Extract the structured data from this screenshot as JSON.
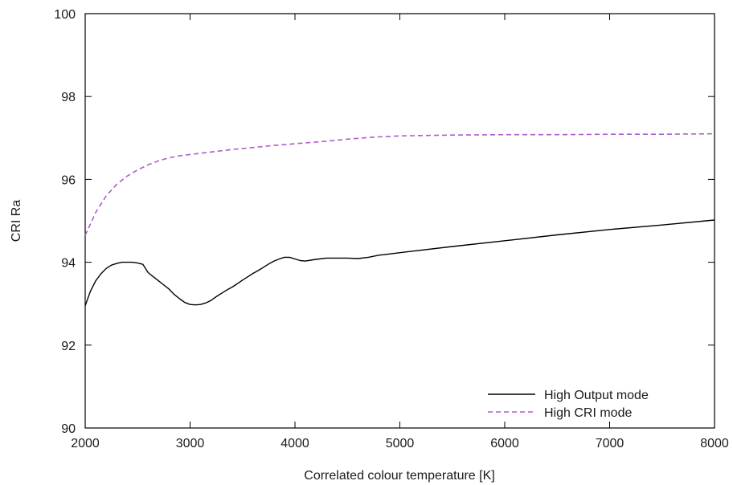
{
  "chart_data": {
    "type": "line",
    "title": "",
    "xlabel": "Correlated colour temperature [K]",
    "ylabel": "CRI Ra",
    "xlim": [
      2000,
      8000
    ],
    "ylim": [
      90,
      100
    ],
    "xticks": [
      2000,
      3000,
      4000,
      5000,
      6000,
      7000,
      8000
    ],
    "yticks": [
      90,
      92,
      94,
      96,
      98,
      100
    ],
    "xtick_labels": [
      "2000",
      "3000",
      "4000",
      "5000",
      "6000",
      "7000",
      "8000"
    ],
    "ytick_labels": [
      "90",
      "92",
      "94",
      "96",
      "98",
      "100"
    ],
    "grid": false,
    "legend_placement": "bottom-right",
    "series": [
      {
        "name": "High Output mode",
        "color": "#000000",
        "style": "solid",
        "points": [
          [
            2000,
            92.95
          ],
          [
            2050,
            93.3
          ],
          [
            2100,
            93.55
          ],
          [
            2150,
            93.72
          ],
          [
            2200,
            93.85
          ],
          [
            2250,
            93.93
          ],
          [
            2300,
            93.97
          ],
          [
            2350,
            94.0
          ],
          [
            2400,
            94.0
          ],
          [
            2450,
            94.0
          ],
          [
            2500,
            93.98
          ],
          [
            2550,
            93.95
          ],
          [
            2600,
            93.75
          ],
          [
            2650,
            93.65
          ],
          [
            2700,
            93.55
          ],
          [
            2750,
            93.45
          ],
          [
            2800,
            93.35
          ],
          [
            2850,
            93.22
          ],
          [
            2900,
            93.12
          ],
          [
            2950,
            93.03
          ],
          [
            3000,
            92.98
          ],
          [
            3050,
            92.97
          ],
          [
            3100,
            92.98
          ],
          [
            3150,
            93.02
          ],
          [
            3200,
            93.08
          ],
          [
            3250,
            93.17
          ],
          [
            3300,
            93.25
          ],
          [
            3350,
            93.33
          ],
          [
            3400,
            93.4
          ],
          [
            3450,
            93.48
          ],
          [
            3500,
            93.57
          ],
          [
            3550,
            93.65
          ],
          [
            3600,
            93.73
          ],
          [
            3650,
            93.8
          ],
          [
            3700,
            93.88
          ],
          [
            3750,
            93.96
          ],
          [
            3800,
            94.03
          ],
          [
            3850,
            94.08
          ],
          [
            3900,
            94.12
          ],
          [
            3950,
            94.12
          ],
          [
            4000,
            94.08
          ],
          [
            4050,
            94.04
          ],
          [
            4100,
            94.03
          ],
          [
            4150,
            94.05
          ],
          [
            4200,
            94.07
          ],
          [
            4300,
            94.1
          ],
          [
            4400,
            94.1
          ],
          [
            4500,
            94.1
          ],
          [
            4600,
            94.09
          ],
          [
            4700,
            94.12
          ],
          [
            4800,
            94.17
          ],
          [
            4900,
            94.2
          ],
          [
            5000,
            94.23
          ],
          [
            5500,
            94.38
          ],
          [
            6000,
            94.52
          ],
          [
            6500,
            94.66
          ],
          [
            7000,
            94.79
          ],
          [
            7500,
            94.9
          ],
          [
            8000,
            95.02
          ]
        ]
      },
      {
        "name": "High CRI mode",
        "color": "#b05cc8",
        "style": "dashed",
        "points": [
          [
            2000,
            94.65
          ],
          [
            2100,
            95.2
          ],
          [
            2200,
            95.6
          ],
          [
            2300,
            95.88
          ],
          [
            2400,
            96.08
          ],
          [
            2500,
            96.23
          ],
          [
            2600,
            96.35
          ],
          [
            2700,
            96.45
          ],
          [
            2800,
            96.52
          ],
          [
            2900,
            96.57
          ],
          [
            3000,
            96.6
          ],
          [
            3200,
            96.66
          ],
          [
            3400,
            96.72
          ],
          [
            3600,
            96.77
          ],
          [
            3800,
            96.82
          ],
          [
            4000,
            96.86
          ],
          [
            4250,
            96.91
          ],
          [
            4500,
            96.97
          ],
          [
            4750,
            97.02
          ],
          [
            5000,
            97.05
          ],
          [
            5500,
            97.07
          ],
          [
            6000,
            97.08
          ],
          [
            6500,
            97.08
          ],
          [
            7000,
            97.09
          ],
          [
            7500,
            97.09
          ],
          [
            8000,
            97.1
          ]
        ]
      }
    ]
  }
}
